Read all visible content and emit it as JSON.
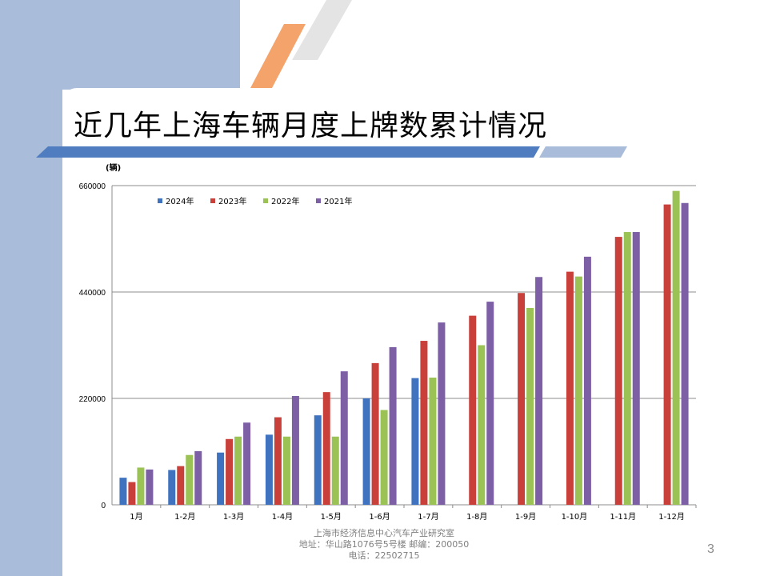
{
  "slide": {
    "title": "近几年上海车辆月度上牌数累计情况",
    "footer_lines": [
      "上海市经济信息中心汽车产业研究室",
      "地址：华山路1076号5号楼    邮编：200050",
      "电话：22502715"
    ],
    "page_number": "3"
  },
  "colors": {
    "band": "#a9bcd9",
    "title_bar": "#4f7dc0",
    "stripe_orange": "#f4a36b",
    "stripe_gray": "#e4e4e4"
  },
  "chart_data": {
    "type": "bar",
    "unit_label": "(辆)",
    "categories": [
      "1月",
      "1-2月",
      "1-3月",
      "1-4月",
      "1-5月",
      "1-6月",
      "1-7月",
      "1-8月",
      "1-9月",
      "1-10月",
      "1-11月",
      "1-12月"
    ],
    "series": [
      {
        "name": "2024年",
        "color": "#3f73bf",
        "values": [
          56000,
          72000,
          108000,
          145000,
          185000,
          220000,
          262000,
          null,
          null,
          null,
          null,
          null
        ]
      },
      {
        "name": "2023年",
        "color": "#c9403b",
        "values": [
          47000,
          80000,
          136000,
          181000,
          233000,
          293000,
          339000,
          391000,
          438000,
          482000,
          554000,
          621000
        ]
      },
      {
        "name": "2022年",
        "color": "#9bc255",
        "values": [
          77000,
          103000,
          141000,
          141000,
          141000,
          196000,
          263000,
          330000,
          407000,
          472000,
          564000,
          649000
        ]
      },
      {
        "name": "2021年",
        "color": "#7d5fa6",
        "values": [
          73000,
          111000,
          170000,
          225000,
          276000,
          326000,
          377000,
          420000,
          471000,
          513000,
          564000,
          624000
        ]
      }
    ],
    "yticks": [
      0,
      220000,
      440000,
      660000
    ],
    "ylim": [
      0,
      660000
    ],
    "grid": true,
    "legend_position": "top-left"
  }
}
